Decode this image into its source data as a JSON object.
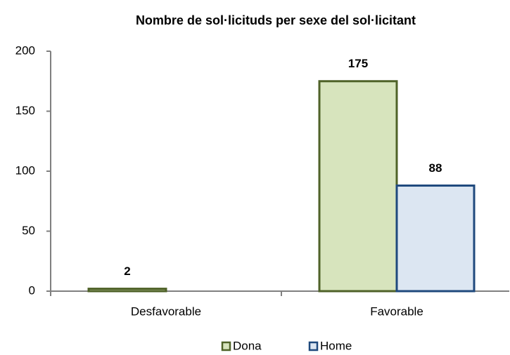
{
  "chart_data": {
    "type": "bar",
    "title": "Nombre de sol·licituds per sexe del sol·licitant",
    "categories": [
      "Desfavorable",
      "Favorable"
    ],
    "series": [
      {
        "name": "Dona",
        "color": "#d7e4bd",
        "stroke": "#4f6228",
        "values": [
          2,
          175
        ]
      },
      {
        "name": "Home",
        "color": "#dce6f2",
        "stroke": "#1f497d",
        "values": [
          null,
          88
        ]
      }
    ],
    "ylim": [
      0,
      200
    ],
    "yticks": [
      0,
      50,
      100,
      150,
      200
    ],
    "grid": false,
    "legend": "bottom"
  }
}
